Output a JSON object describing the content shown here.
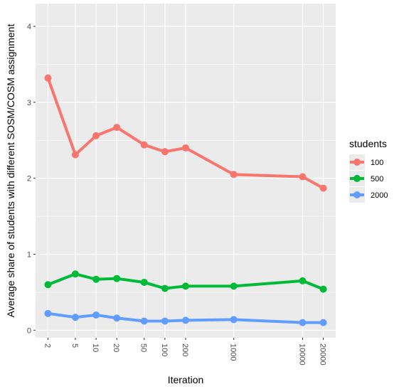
{
  "chart_data": {
    "type": "line",
    "title": "",
    "xlabel": "Iteration",
    "ylabel": "Average share of students with different SOSM/COSM assignment",
    "x_scale": "log10",
    "x": [
      2,
      5,
      10,
      20,
      50,
      100,
      200,
      1000,
      10000,
      20000
    ],
    "x_tick_labels": [
      "2",
      "5",
      "10",
      "20",
      "50",
      "100",
      "200",
      "1000",
      "10000",
      "20000"
    ],
    "y_ticks": [
      0,
      1,
      2,
      3,
      4
    ],
    "y_tick_labels": [
      "0",
      "1",
      "2",
      "3",
      "4"
    ],
    "ylim": [
      -0.1,
      4.3
    ],
    "grid": true,
    "legend": {
      "title": "students",
      "position": "right"
    },
    "series": [
      {
        "name": "100",
        "color": "#F8766D",
        "values": [
          3.32,
          2.31,
          2.56,
          2.67,
          2.44,
          2.35,
          2.4,
          2.05,
          2.02,
          1.87
        ]
      },
      {
        "name": "500",
        "color": "#00BA38",
        "values": [
          0.6,
          0.74,
          0.67,
          0.68,
          0.63,
          0.55,
          0.58,
          0.58,
          0.65,
          0.54
        ]
      },
      {
        "name": "2000",
        "color": "#619CFF",
        "values": [
          0.22,
          0.17,
          0.2,
          0.16,
          0.12,
          0.12,
          0.13,
          0.14,
          0.1,
          0.1
        ]
      }
    ]
  }
}
